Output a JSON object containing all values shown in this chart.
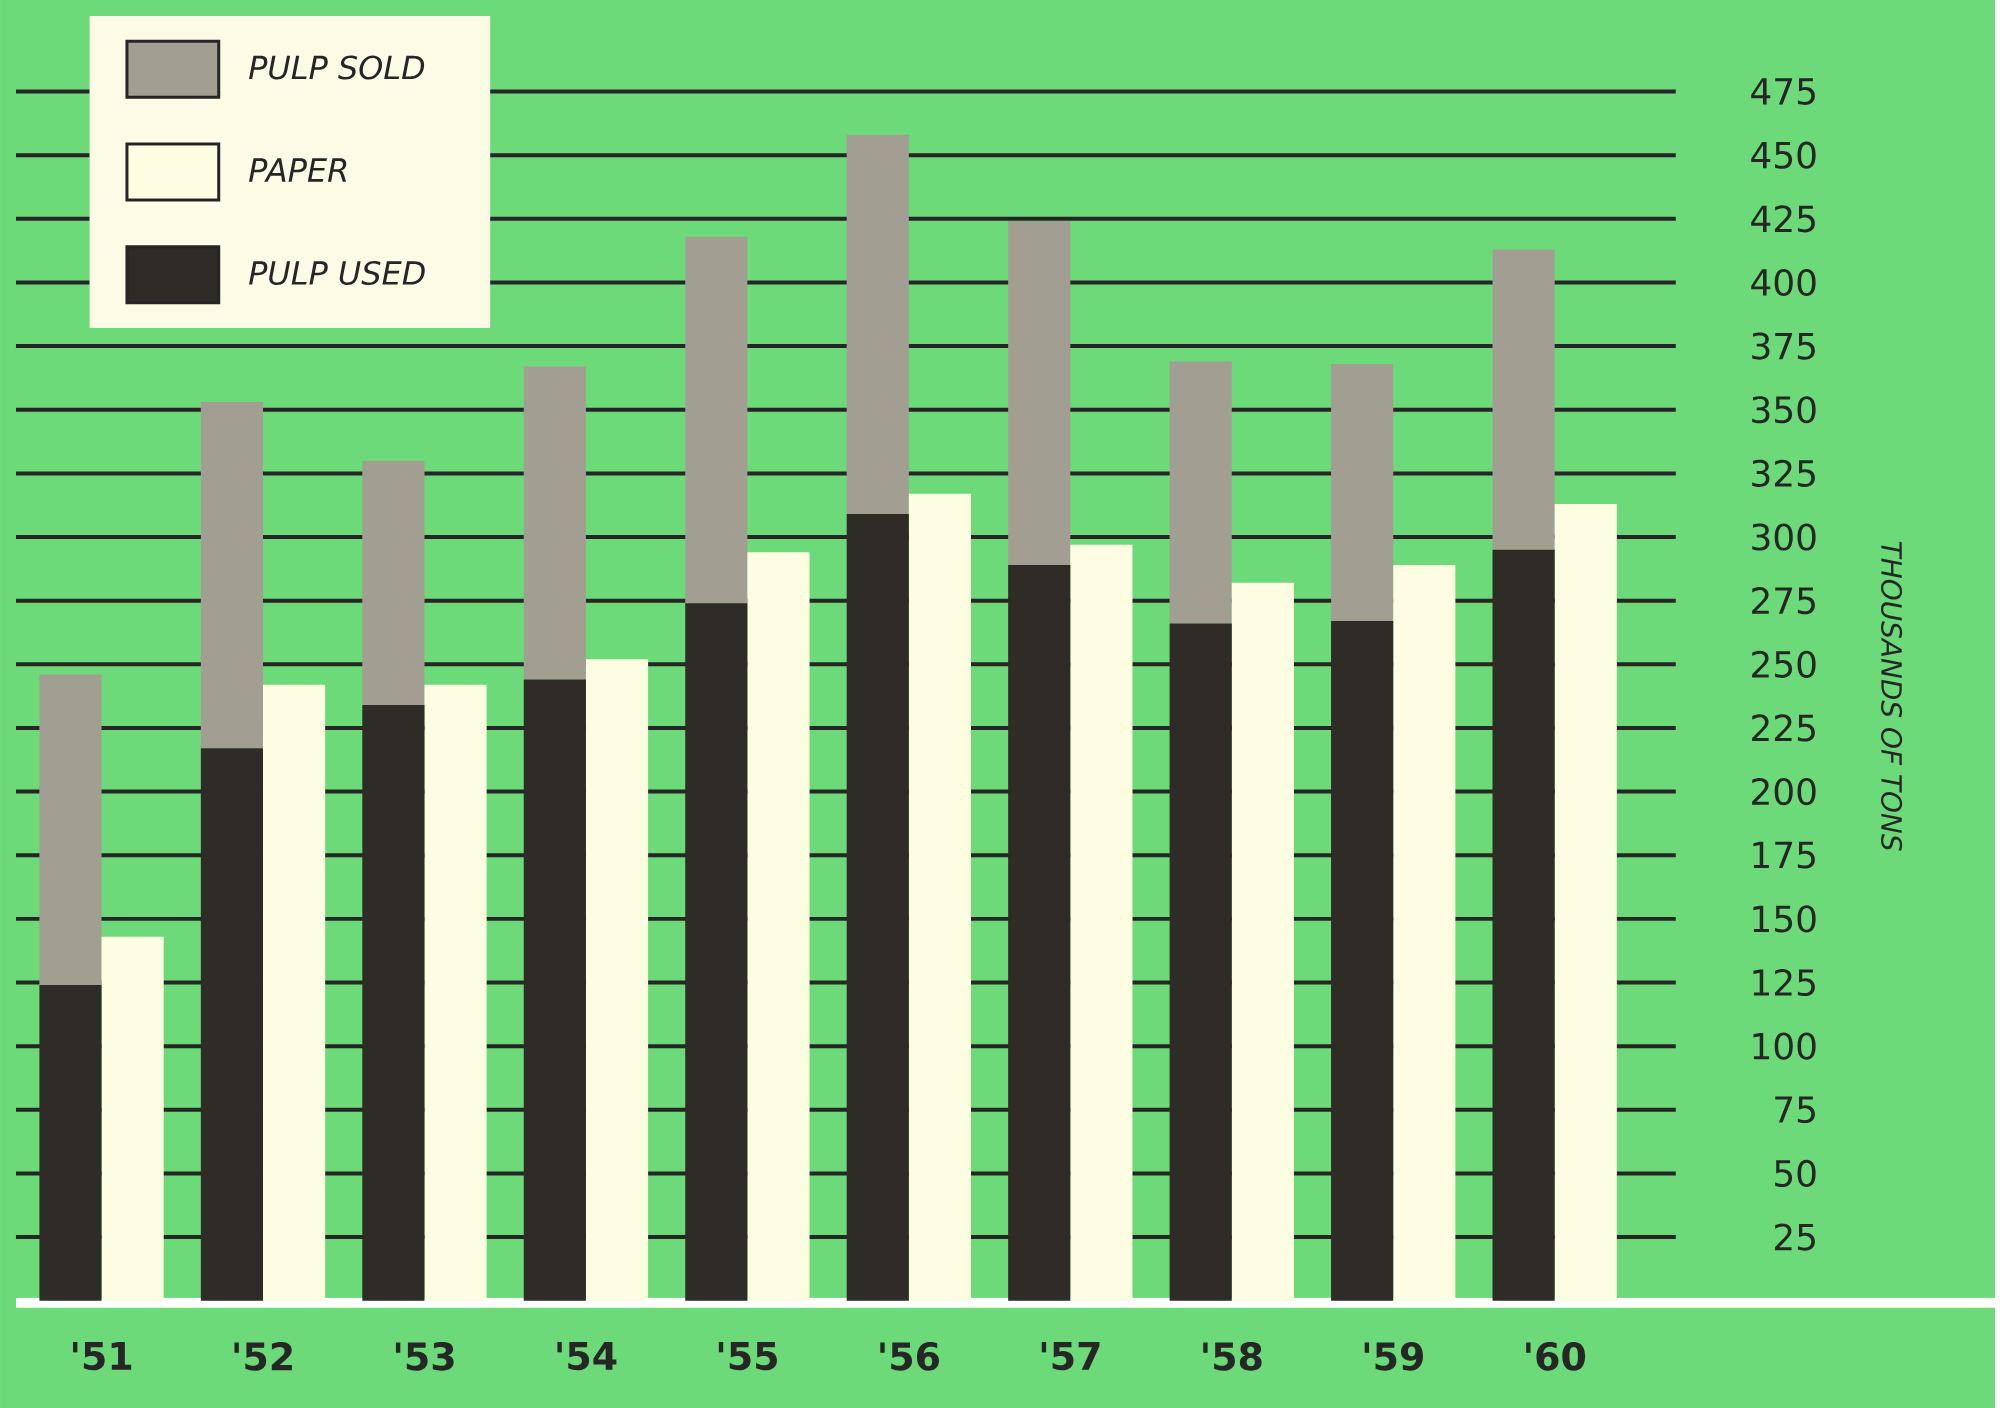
{
  "chart_data": {
    "type": "bar",
    "categories": [
      "'51",
      "'52",
      "'53",
      "'54",
      "'55",
      "'56",
      "'57",
      "'58",
      "'59",
      "'60"
    ],
    "series": [
      {
        "name": "PULP SOLD",
        "color": "#a29f92",
        "values": [
          122,
          136,
          96,
          123,
          144,
          149,
          135,
          103,
          101,
          118
        ],
        "base": [
          124,
          217,
          234,
          244,
          274,
          309,
          289,
          266,
          267,
          295
        ]
      },
      {
        "name": "PAPER",
        "color": "#fdfde2",
        "values": [
          143,
          242,
          242,
          252,
          294,
          317,
          297,
          282,
          289,
          313
        ]
      },
      {
        "name": "PULP USED",
        "color": "#2f2b26",
        "values": [
          124,
          217,
          234,
          244,
          274,
          309,
          289,
          266,
          267,
          295
        ]
      }
    ],
    "ylabel": "THOUSANDS OF TONS",
    "ylim": [
      0,
      475
    ],
    "yticks": [
      25,
      50,
      75,
      100,
      125,
      150,
      175,
      200,
      225,
      250,
      275,
      300,
      325,
      350,
      375,
      400,
      425,
      450,
      475
    ],
    "grid": "y",
    "legend": "top left"
  }
}
